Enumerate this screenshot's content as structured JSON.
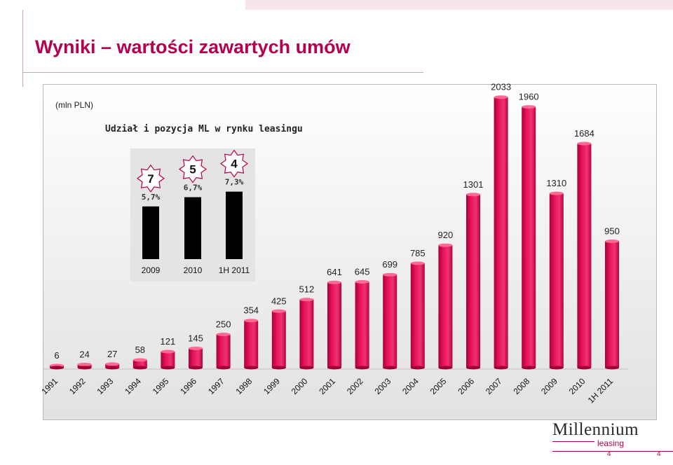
{
  "page": {
    "title": "Wyniki – wartości zawartych umów",
    "page_number_center": "4",
    "page_number_right": "4"
  },
  "logo": {
    "name": "Millennium",
    "sub": "leasing"
  },
  "colors": {
    "accent": "#b4004e",
    "bar": "#e8145a",
    "inset_bar": "#000000"
  },
  "chart_data": [
    {
      "type": "bar",
      "unit_label": "(mln PLN)",
      "categories": [
        "1991",
        "1992",
        "1993",
        "1994",
        "1995",
        "1996",
        "1997",
        "1998",
        "1999",
        "2000",
        "2001",
        "2002",
        "2003",
        "2004",
        "2005",
        "2006",
        "2007",
        "2008",
        "2009",
        "2010",
        "1H 2011"
      ],
      "values": [
        6,
        24,
        27,
        58,
        121,
        145,
        250,
        354,
        425,
        512,
        641,
        645,
        699,
        785,
        920,
        1301,
        2033,
        1960,
        1310,
        1684,
        950
      ],
      "ylim": [
        0,
        2100
      ],
      "grid": false,
      "legend": "none"
    },
    {
      "type": "bar",
      "title": "Udział i pozycja ML w rynku leasingu",
      "categories": [
        "2009",
        "2010",
        "1H 2011"
      ],
      "values": [
        5.7,
        6.7,
        7.3
      ],
      "value_labels": [
        "5,7%",
        "6,7%",
        "7,3%"
      ],
      "positions": [
        "7",
        "5",
        "4"
      ]
    }
  ]
}
